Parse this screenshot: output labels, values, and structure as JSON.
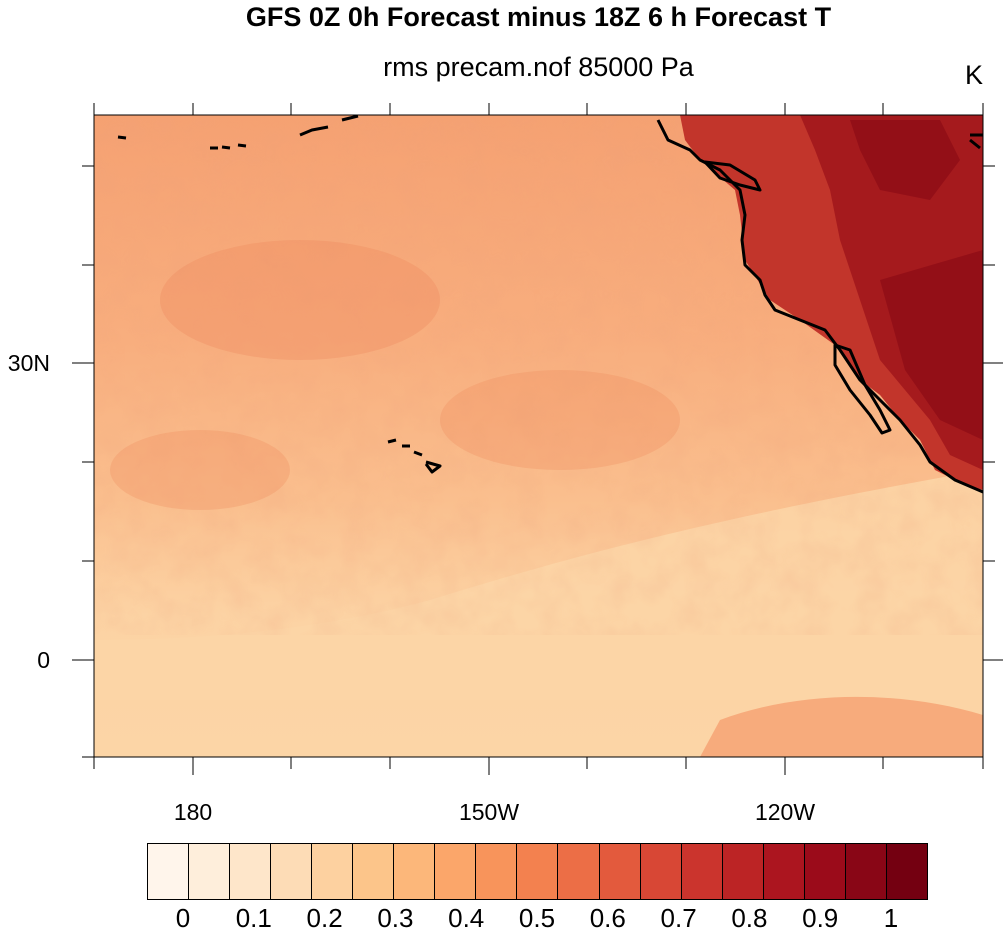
{
  "header": {
    "title": "GFS 0Z 0h Forecast minus 18Z 6 h Forecast T",
    "subtitle": "rms precam.nof 85000 Pa",
    "units": "K"
  },
  "axes": {
    "y_labels": [
      "30N",
      "0"
    ],
    "x_labels": [
      "180",
      "150W",
      "120W"
    ]
  },
  "colorbar": {
    "labels": [
      "0",
      "0.1",
      "0.2",
      "0.3",
      "0.4",
      "0.5",
      "0.6",
      "0.7",
      "0.8",
      "0.9",
      "1"
    ],
    "colors": [
      "#fff5eb",
      "#feeedb",
      "#fee6ca",
      "#fddcb6",
      "#fdd1a0",
      "#fcc58a",
      "#fcb77a",
      "#fba66a",
      "#f8945b",
      "#f3814f",
      "#ec6e46",
      "#e35a3d",
      "#d84735",
      "#cb342d",
      "#bc2425",
      "#ac151f",
      "#9b0b1a",
      "#890616",
      "#740011"
    ]
  },
  "map": {
    "region_colors": {
      "south_band": "#fcd3a4",
      "north_base": "#f6a173",
      "mid_zone": "#f9b585",
      "land_dark": "#a51a1d",
      "land_mid": "#c2352b"
    }
  }
}
